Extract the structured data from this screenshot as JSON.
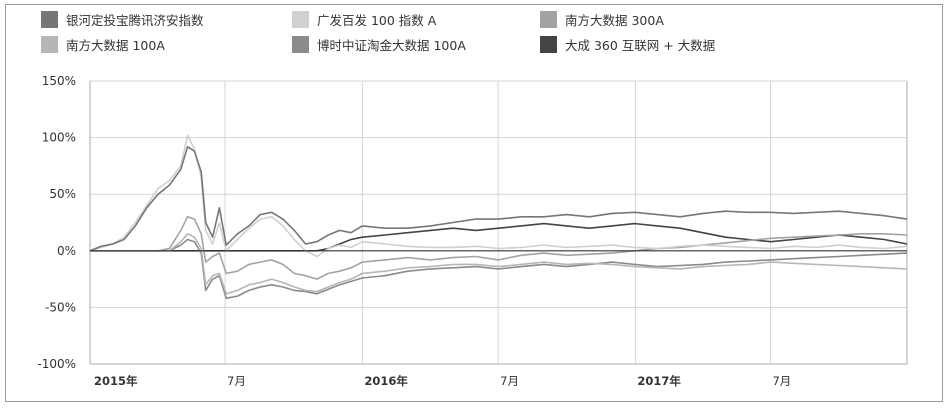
{
  "chart_data": {
    "type": "line",
    "title": "",
    "xlabel": "",
    "ylabel": "",
    "ylim": [
      -100,
      150
    ],
    "y_ticks": [
      "150%",
      "100%",
      "50%",
      "0%",
      "-50%",
      "-100%"
    ],
    "y_tick_values": [
      150,
      100,
      50,
      0,
      -50,
      -100
    ],
    "x_ticks": [
      {
        "label": "2015年",
        "date": "2015-01-01",
        "major": true
      },
      {
        "label": "7月",
        "date": "2015-07-01",
        "major": false
      },
      {
        "label": "2016年",
        "date": "2016-01-01",
        "major": true
      },
      {
        "label": "7月",
        "date": "2016-07-01",
        "major": false
      },
      {
        "label": "2017年",
        "date": "2017-01-01",
        "major": true
      },
      {
        "label": "7月",
        "date": "2017-07-01",
        "major": false
      }
    ],
    "x_range": [
      "2015-01-01",
      "2017-12-31"
    ],
    "grid": true,
    "legend_position": "top",
    "series": [
      {
        "name": "银河定投宝腾讯济安指数",
        "color": "#767676",
        "values": [
          [
            0,
            0
          ],
          [
            0.5,
            4
          ],
          [
            1,
            6
          ],
          [
            1.5,
            10
          ],
          [
            2,
            22
          ],
          [
            2.5,
            38
          ],
          [
            3,
            50
          ],
          [
            3.5,
            58
          ],
          [
            4,
            72
          ],
          [
            4.3,
            92
          ],
          [
            4.6,
            88
          ],
          [
            4.9,
            70
          ],
          [
            5.1,
            25
          ],
          [
            5.4,
            12
          ],
          [
            5.7,
            38
          ],
          [
            6,
            5
          ],
          [
            6.5,
            15
          ],
          [
            7,
            22
          ],
          [
            7.5,
            32
          ],
          [
            8,
            34
          ],
          [
            8.5,
            28
          ],
          [
            9,
            18
          ],
          [
            9.5,
            6
          ],
          [
            10,
            8
          ],
          [
            10.5,
            14
          ],
          [
            11,
            18
          ],
          [
            11.5,
            16
          ],
          [
            12,
            22
          ],
          [
            13,
            20
          ],
          [
            14,
            20
          ],
          [
            15,
            22
          ],
          [
            16,
            25
          ],
          [
            17,
            28
          ],
          [
            18,
            28
          ],
          [
            19,
            30
          ],
          [
            20,
            30
          ],
          [
            21,
            32
          ],
          [
            22,
            30
          ],
          [
            23,
            33
          ],
          [
            24,
            34
          ],
          [
            25,
            32
          ],
          [
            26,
            30
          ],
          [
            27,
            33
          ],
          [
            28,
            35
          ],
          [
            29,
            34
          ],
          [
            30,
            34
          ],
          [
            31,
            33
          ],
          [
            32,
            34
          ],
          [
            33,
            35
          ],
          [
            34,
            33
          ],
          [
            35,
            31
          ],
          [
            36,
            28
          ]
        ]
      },
      {
        "name": "广发百发 100 指数 A",
        "color": "#d0d0d0",
        "values": [
          [
            0,
            0
          ],
          [
            0.5,
            3
          ],
          [
            1,
            6
          ],
          [
            1.5,
            12
          ],
          [
            2,
            25
          ],
          [
            2.5,
            40
          ],
          [
            3,
            55
          ],
          [
            3.5,
            62
          ],
          [
            4,
            75
          ],
          [
            4.3,
            102
          ],
          [
            4.6,
            90
          ],
          [
            4.9,
            65
          ],
          [
            5.1,
            18
          ],
          [
            5.4,
            6
          ],
          [
            5.7,
            25
          ],
          [
            6,
            0
          ],
          [
            6.5,
            10
          ],
          [
            7,
            20
          ],
          [
            7.5,
            28
          ],
          [
            8,
            30
          ],
          [
            8.5,
            22
          ],
          [
            9,
            10
          ],
          [
            9.5,
            0
          ],
          [
            10,
            -5
          ],
          [
            10.5,
            2
          ],
          [
            11,
            5
          ],
          [
            11.5,
            3
          ],
          [
            12,
            8
          ],
          [
            13,
            6
          ],
          [
            14,
            4
          ],
          [
            15,
            3
          ],
          [
            16,
            3
          ],
          [
            17,
            4
          ],
          [
            18,
            2
          ],
          [
            19,
            3
          ],
          [
            20,
            5
          ],
          [
            21,
            3
          ],
          [
            22,
            4
          ],
          [
            23,
            5
          ],
          [
            24,
            3
          ],
          [
            25,
            2
          ],
          [
            26,
            4
          ],
          [
            27,
            5
          ],
          [
            28,
            4
          ],
          [
            29,
            3
          ],
          [
            30,
            2
          ],
          [
            31,
            4
          ],
          [
            32,
            3
          ],
          [
            33,
            5
          ],
          [
            34,
            3
          ],
          [
            35,
            2
          ],
          [
            36,
            4
          ]
        ]
      },
      {
        "name": "南方大数据 300A",
        "color": "#a3a3a3",
        "values": [
          [
            0,
            0
          ],
          [
            0.5,
            0
          ],
          [
            1,
            0
          ],
          [
            1.5,
            0
          ],
          [
            2,
            0
          ],
          [
            2.5,
            0
          ],
          [
            3,
            0
          ],
          [
            3.5,
            2
          ],
          [
            4,
            18
          ],
          [
            4.3,
            30
          ],
          [
            4.6,
            28
          ],
          [
            4.9,
            15
          ],
          [
            5.1,
            -10
          ],
          [
            5.4,
            -5
          ],
          [
            5.7,
            -2
          ],
          [
            6,
            -20
          ],
          [
            6.5,
            -18
          ],
          [
            7,
            -12
          ],
          [
            7.5,
            -10
          ],
          [
            8,
            -8
          ],
          [
            8.5,
            -12
          ],
          [
            9,
            -20
          ],
          [
            9.5,
            -22
          ],
          [
            10,
            -25
          ],
          [
            10.5,
            -20
          ],
          [
            11,
            -18
          ],
          [
            11.5,
            -15
          ],
          [
            12,
            -10
          ],
          [
            13,
            -8
          ],
          [
            14,
            -6
          ],
          [
            15,
            -8
          ],
          [
            16,
            -6
          ],
          [
            17,
            -5
          ],
          [
            18,
            -8
          ],
          [
            19,
            -4
          ],
          [
            20,
            -2
          ],
          [
            21,
            -4
          ],
          [
            22,
            -3
          ],
          [
            23,
            -2
          ],
          [
            24,
            0
          ],
          [
            25,
            2
          ],
          [
            26,
            3
          ],
          [
            27,
            5
          ],
          [
            28,
            7
          ],
          [
            29,
            9
          ],
          [
            30,
            11
          ],
          [
            31,
            12
          ],
          [
            32,
            13
          ],
          [
            33,
            14
          ],
          [
            34,
            15
          ],
          [
            35,
            15
          ],
          [
            36,
            14
          ]
        ]
      },
      {
        "name": "南方大数据 100A",
        "color": "#b6b6b6",
        "values": [
          [
            0,
            0
          ],
          [
            0.5,
            0
          ],
          [
            1,
            0
          ],
          [
            1.5,
            0
          ],
          [
            2,
            0
          ],
          [
            2.5,
            0
          ],
          [
            3,
            0
          ],
          [
            3.5,
            0
          ],
          [
            4,
            8
          ],
          [
            4.3,
            15
          ],
          [
            4.6,
            12
          ],
          [
            4.9,
            2
          ],
          [
            5.1,
            -30
          ],
          [
            5.4,
            -22
          ],
          [
            5.7,
            -20
          ],
          [
            6,
            -38
          ],
          [
            6.5,
            -35
          ],
          [
            7,
            -30
          ],
          [
            7.5,
            -28
          ],
          [
            8,
            -25
          ],
          [
            8.5,
            -28
          ],
          [
            9,
            -32
          ],
          [
            9.5,
            -35
          ],
          [
            10,
            -36
          ],
          [
            10.5,
            -32
          ],
          [
            11,
            -28
          ],
          [
            11.5,
            -25
          ],
          [
            12,
            -20
          ],
          [
            13,
            -18
          ],
          [
            14,
            -15
          ],
          [
            15,
            -14
          ],
          [
            16,
            -12
          ],
          [
            17,
            -12
          ],
          [
            18,
            -14
          ],
          [
            19,
            -12
          ],
          [
            20,
            -10
          ],
          [
            21,
            -12
          ],
          [
            22,
            -11
          ],
          [
            23,
            -12
          ],
          [
            24,
            -14
          ],
          [
            25,
            -15
          ],
          [
            26,
            -16
          ],
          [
            27,
            -14
          ],
          [
            28,
            -13
          ],
          [
            29,
            -12
          ],
          [
            30,
            -10
          ],
          [
            31,
            -11
          ],
          [
            32,
            -12
          ],
          [
            33,
            -13
          ],
          [
            34,
            -14
          ],
          [
            35,
            -15
          ],
          [
            36,
            -16
          ]
        ]
      },
      {
        "name": "博时中证淘金大数据 100A",
        "color": "#8b8b8b",
        "values": [
          [
            0,
            0
          ],
          [
            0.5,
            0
          ],
          [
            1,
            0
          ],
          [
            1.5,
            0
          ],
          [
            2,
            0
          ],
          [
            2.5,
            0
          ],
          [
            3,
            0
          ],
          [
            3.5,
            0
          ],
          [
            4,
            5
          ],
          [
            4.3,
            10
          ],
          [
            4.6,
            8
          ],
          [
            4.9,
            -2
          ],
          [
            5.1,
            -35
          ],
          [
            5.4,
            -25
          ],
          [
            5.7,
            -22
          ],
          [
            6,
            -42
          ],
          [
            6.5,
            -40
          ],
          [
            7,
            -35
          ],
          [
            7.5,
            -32
          ],
          [
            8,
            -30
          ],
          [
            8.5,
            -32
          ],
          [
            9,
            -35
          ],
          [
            9.5,
            -36
          ],
          [
            10,
            -38
          ],
          [
            10.5,
            -34
          ],
          [
            11,
            -30
          ],
          [
            11.5,
            -27
          ],
          [
            12,
            -24
          ],
          [
            13,
            -22
          ],
          [
            14,
            -18
          ],
          [
            15,
            -16
          ],
          [
            16,
            -15
          ],
          [
            17,
            -14
          ],
          [
            18,
            -16
          ],
          [
            19,
            -14
          ],
          [
            20,
            -12
          ],
          [
            21,
            -14
          ],
          [
            22,
            -12
          ],
          [
            23,
            -10
          ],
          [
            24,
            -12
          ],
          [
            25,
            -14
          ],
          [
            26,
            -13
          ],
          [
            27,
            -12
          ],
          [
            28,
            -10
          ],
          [
            29,
            -9
          ],
          [
            30,
            -8
          ],
          [
            31,
            -7
          ],
          [
            32,
            -6
          ],
          [
            33,
            -5
          ],
          [
            34,
            -4
          ],
          [
            35,
            -3
          ],
          [
            36,
            -2
          ]
        ]
      },
      {
        "name": "大成 360 互联网 + 大数据",
        "color": "#444444",
        "values": [
          [
            0,
            0
          ],
          [
            0.5,
            0
          ],
          [
            1,
            0
          ],
          [
            1.5,
            0
          ],
          [
            2,
            0
          ],
          [
            2.5,
            0
          ],
          [
            3,
            0
          ],
          [
            3.5,
            0
          ],
          [
            4,
            0
          ],
          [
            4.3,
            0
          ],
          [
            4.6,
            0
          ],
          [
            4.9,
            0
          ],
          [
            5.1,
            0
          ],
          [
            5.4,
            0
          ],
          [
            5.7,
            0
          ],
          [
            6,
            0
          ],
          [
            6.5,
            0
          ],
          [
            7,
            0
          ],
          [
            7.5,
            0
          ],
          [
            8,
            0
          ],
          [
            8.5,
            0
          ],
          [
            9,
            0
          ],
          [
            9.5,
            0
          ],
          [
            10,
            0
          ],
          [
            10.5,
            2
          ],
          [
            11,
            6
          ],
          [
            11.5,
            10
          ],
          [
            12,
            12
          ],
          [
            13,
            14
          ],
          [
            14,
            16
          ],
          [
            15,
            18
          ],
          [
            16,
            20
          ],
          [
            17,
            18
          ],
          [
            18,
            20
          ],
          [
            19,
            22
          ],
          [
            20,
            24
          ],
          [
            21,
            22
          ],
          [
            22,
            20
          ],
          [
            23,
            22
          ],
          [
            24,
            24
          ],
          [
            25,
            22
          ],
          [
            26,
            20
          ],
          [
            27,
            16
          ],
          [
            28,
            12
          ],
          [
            29,
            10
          ],
          [
            30,
            8
          ],
          [
            31,
            10
          ],
          [
            32,
            12
          ],
          [
            33,
            14
          ],
          [
            34,
            12
          ],
          [
            35,
            10
          ],
          [
            36,
            6
          ]
        ]
      }
    ]
  }
}
